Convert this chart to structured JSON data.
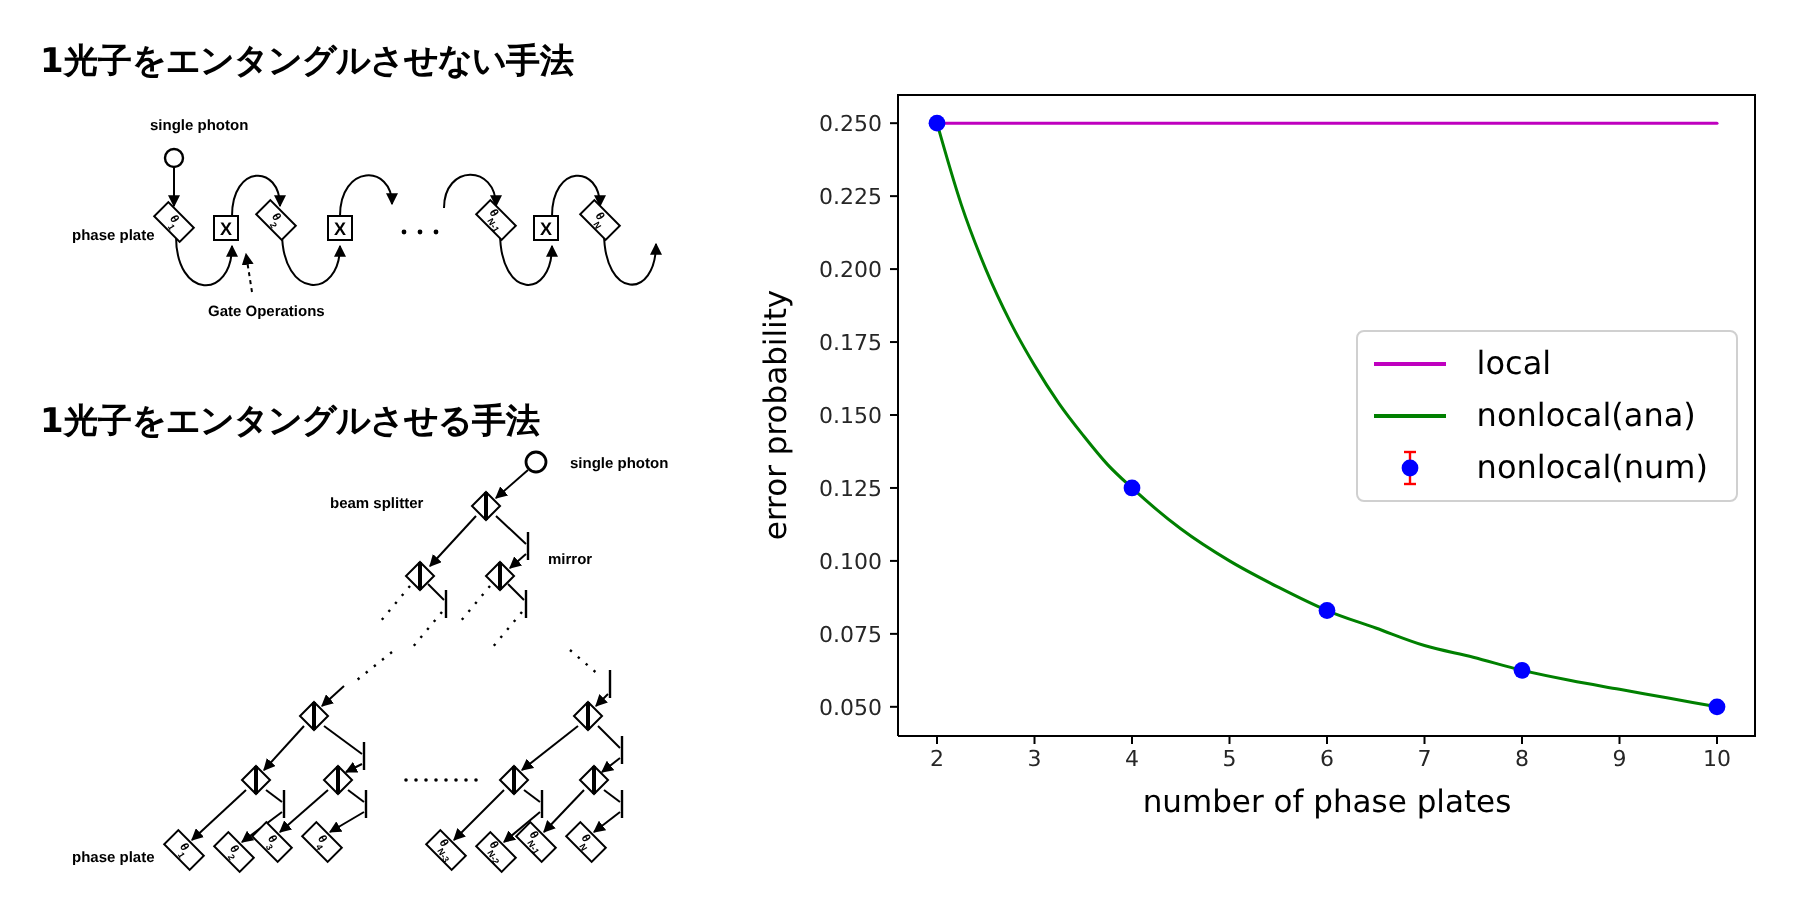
{
  "chart_data": [
    {
      "type": "other",
      "title": "1光子をエンタングルさせない手法",
      "annotations": [
        "single photon",
        "phase plate",
        "Gate Operations",
        "X",
        "X",
        "X",
        "θ$_{1}$",
        "θ$_{2}$",
        "θ$_{N-1}$",
        "θ$_{N}$"
      ]
    },
    {
      "type": "other",
      "title": "1光子をエンタングルさせる手法",
      "annotations": [
        "single photon",
        "beam splitter",
        "mirror",
        "phase plate",
        "θ$_{1}$",
        "θ$_{2}$",
        "θ$_{3}$",
        "θ$_{4}$",
        "θ$_{N-3}$",
        "θ$_{N-2}$",
        "θ$_{N-1}$",
        "θ$_{N}$"
      ]
    },
    {
      "type": "line",
      "xlabel": "number of phase plates",
      "ylabel": "error probability",
      "xlim": [
        1.6,
        10.4
      ],
      "xticks": [
        2,
        3,
        4,
        5,
        6,
        7,
        8,
        9,
        10
      ],
      "ylim": [
        0.04,
        0.26
      ],
      "yticks": [
        {
          "value": 0.05,
          "label": "0.050"
        },
        {
          "value": 0.075,
          "label": "0.075"
        },
        {
          "value": 0.1,
          "label": "0.100"
        },
        {
          "value": 0.125,
          "label": "0.125"
        },
        {
          "value": 0.15,
          "label": "0.150"
        },
        {
          "value": 0.175,
          "label": "0.175"
        },
        {
          "value": 0.2,
          "label": "0.200"
        },
        {
          "value": 0.225,
          "label": "0.225"
        },
        {
          "value": 0.25,
          "label": "0.250"
        }
      ],
      "legend": "right",
      "series": [
        {
          "name": "local",
          "type": "line",
          "color": "#bf00bf",
          "x": [
            2,
            10
          ],
          "values": [
            0.25,
            0.25
          ]
        },
        {
          "name": "nonlocal(ana)",
          "type": "line",
          "color": "#008000",
          "x": [
            2,
            2.25,
            2.5,
            2.75,
            3,
            3.25,
            3.5,
            3.75,
            4,
            4.5,
            5,
            5.5,
            6,
            6.5,
            7,
            7.5,
            8,
            8.5,
            9,
            9.5,
            10
          ],
          "values": [
            0.25,
            0.222,
            0.2,
            0.182,
            0.167,
            0.154,
            0.143,
            0.133,
            0.125,
            0.111,
            0.1,
            0.091,
            0.083,
            0.077,
            0.071,
            0.067,
            0.0625,
            0.059,
            0.056,
            0.053,
            0.05
          ]
        },
        {
          "name": "nonlocal(num)",
          "type": "scatter",
          "color": "#0000ff",
          "marker": "circle",
          "x": [
            2,
            4,
            6,
            8,
            10
          ],
          "values": [
            0.25,
            0.125,
            0.083,
            0.0625,
            0.05
          ]
        }
      ]
    }
  ]
}
